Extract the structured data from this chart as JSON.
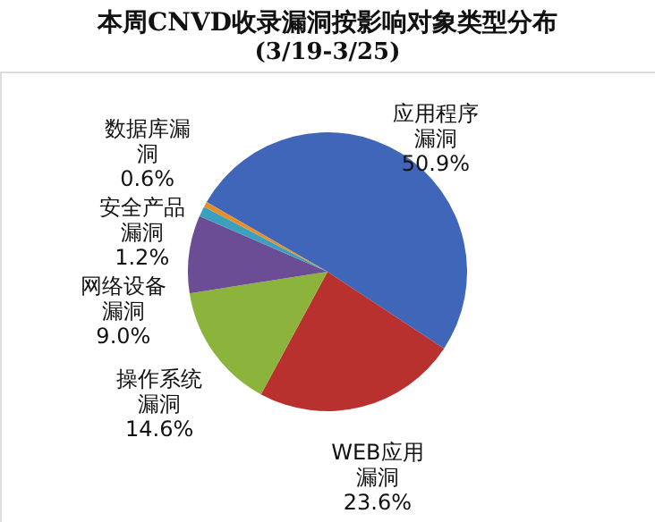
{
  "chart_data": {
    "type": "pie",
    "title": "本周CNVD收录漏洞按影响对象类型分布",
    "subtitle": "(3/19-3/25)",
    "categories": [
      "应用程序漏洞",
      "WEB应用漏洞",
      "操作系统漏洞",
      "网络设备漏洞",
      "安全产品漏洞",
      "数据库漏洞"
    ],
    "values": [
      50.9,
      23.6,
      14.6,
      9.0,
      1.2,
      0.6
    ],
    "value_labels": [
      "50.9%",
      "23.6%",
      "14.6%",
      "9.0%",
      "1.2%",
      "0.6%"
    ],
    "colors": [
      "#3f66b8",
      "#b8312f",
      "#8cb33b",
      "#6b4d96",
      "#3b9fc0",
      "#e58f2c"
    ],
    "legend": false
  }
}
